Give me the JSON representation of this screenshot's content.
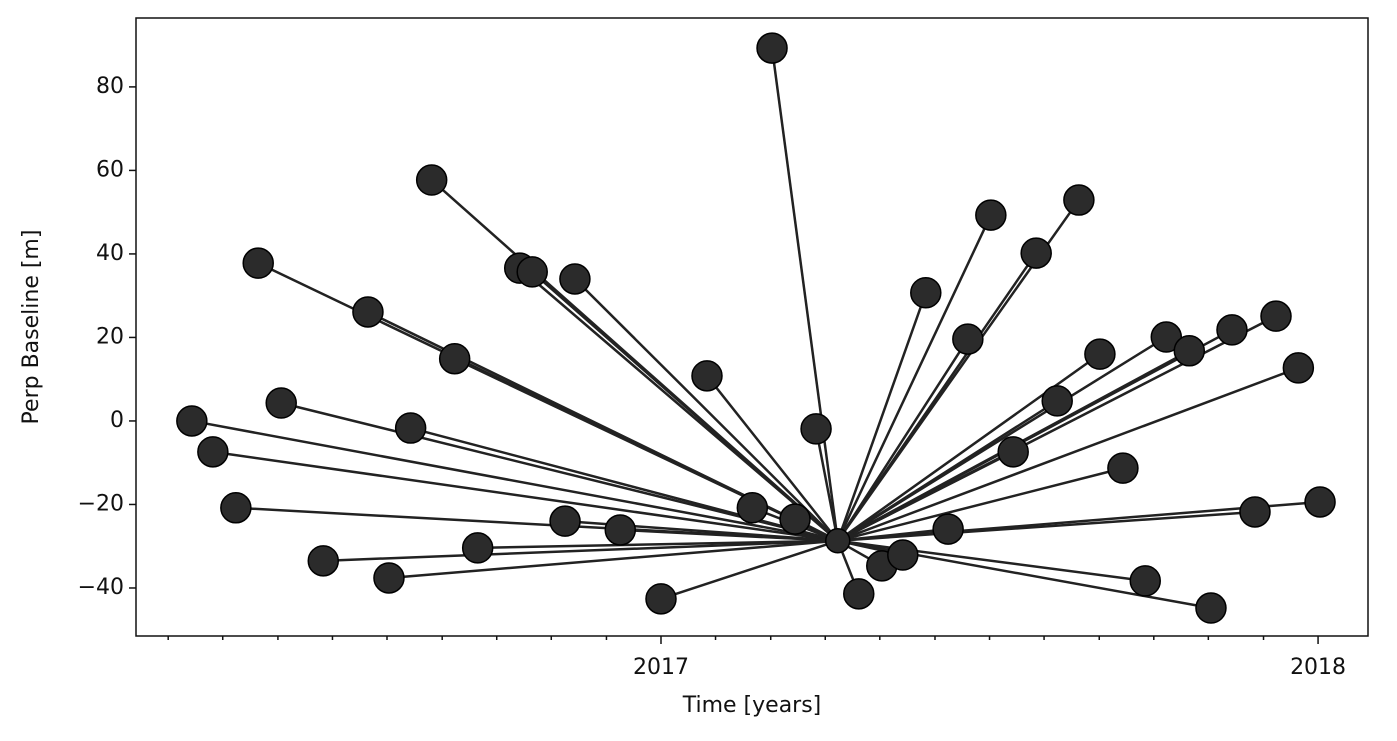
{
  "chart_data": {
    "type": "scatter",
    "xlabel": "Time [years]",
    "ylabel": "Perp Baseline [m]",
    "xlim": [
      2016.201,
      2018.076
    ],
    "ylim": [
      -51.5,
      96.5
    ],
    "xticks": [
      2017,
      2018
    ],
    "minor_xticks": [
      2016.25,
      2016.333,
      2016.417,
      2016.5,
      2016.583,
      2016.667,
      2016.75,
      2016.833,
      2016.917,
      2017.083,
      2017.167,
      2017.25,
      2017.333,
      2017.417,
      2017.5,
      2017.583,
      2017.667,
      2017.75,
      2017.833,
      2017.917
    ],
    "yticks": [
      {
        "value": -40,
        "label": "−40"
      },
      {
        "value": -20,
        "label": "−20"
      },
      0,
      20,
      40,
      60,
      80
    ],
    "reference_x": 2017.269,
    "reference_y": -28.7,
    "color": "#2b2b2b",
    "x": [
      2016.286,
      2016.318,
      2016.353,
      2016.387,
      2016.422,
      2016.486,
      2016.554,
      2016.586,
      2016.619,
      2016.651,
      2016.686,
      2016.721,
      2016.785,
      2016.804,
      2016.854,
      2016.869,
      2016.938,
      2017.0,
      2017.07,
      2017.139,
      2017.169,
      2017.204,
      2017.236,
      2017.301,
      2017.336,
      2017.368,
      2017.403,
      2017.437,
      2017.467,
      2017.502,
      2017.536,
      2017.571,
      2017.603,
      2017.636,
      2017.668,
      2017.703,
      2017.737,
      2017.769,
      2017.804,
      2017.837,
      2017.869,
      2017.904,
      2017.936,
      2017.97,
      2018.003
    ],
    "y": [
      0,
      -7.4,
      -20.8,
      37.8,
      4.3,
      -33.5,
      26.1,
      -37.6,
      -1.7,
      57.7,
      14.9,
      -30.4,
      36.6,
      35.7,
      -24.0,
      34.0,
      -26.1,
      -42.6,
      10.8,
      -20.8,
      89.3,
      -23.5,
      -1.9,
      -41.4,
      -34.7,
      -32.1,
      30.7,
      -25.9,
      19.6,
      49.3,
      -7.4,
      40.2,
      4.8,
      52.9,
      16.0,
      -11.3,
      -38.3,
      20.1,
      16.8,
      -44.8,
      21.8,
      -21.8,
      25.1,
      12.7,
      -19.4
    ]
  }
}
